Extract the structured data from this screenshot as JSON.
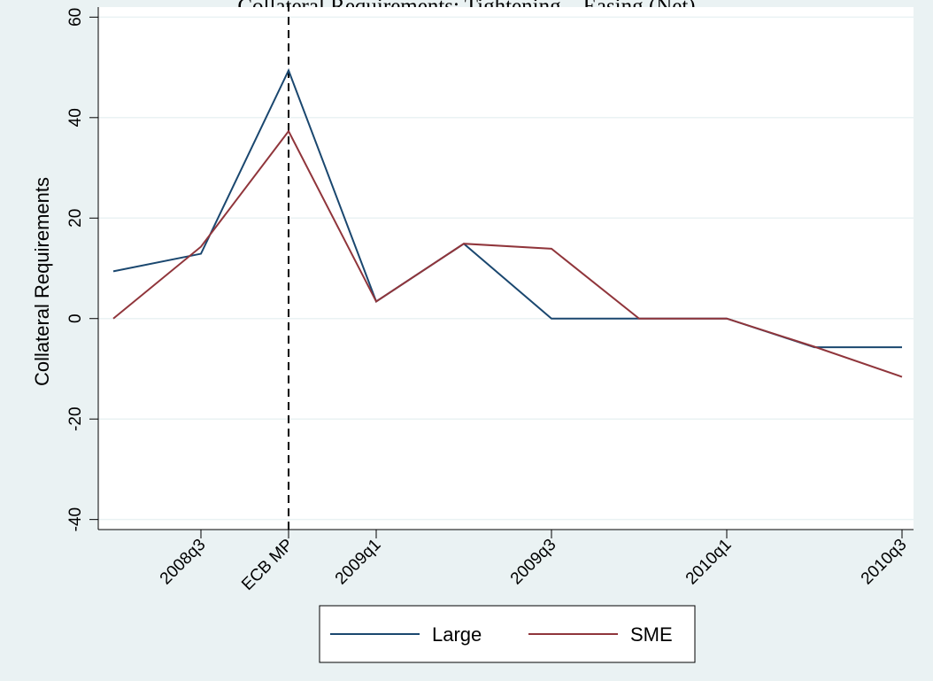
{
  "chart_data": {
    "type": "line",
    "title": "Collateral Requirements: Tightening – Easing (Net)",
    "ylabel": "Collateral Requirements",
    "xlabel": "",
    "x": [
      "2008q2",
      "2008q3",
      "2008q4",
      "2009q1",
      "2009q2",
      "2009q3",
      "2009q4",
      "2010q1",
      "2010q2",
      "2010q3"
    ],
    "x_tick_labels": [
      {
        "x": "2008q3",
        "label": "2008q3"
      },
      {
        "x": "2008q4",
        "label": "ECB MP"
      },
      {
        "x": "2009q1",
        "label": "2009q1"
      },
      {
        "x": "2009q3",
        "label": "2009q3"
      },
      {
        "x": "2010q1",
        "label": "2010q1"
      },
      {
        "x": "2010q3",
        "label": "2010q3"
      }
    ],
    "ylim": [
      -42,
      62
    ],
    "y_ticks": [
      60,
      40,
      20,
      0,
      -20,
      -40
    ],
    "grid": true,
    "vertical_line": {
      "x": "2008q4",
      "style": "dashed",
      "color": "#000000"
    },
    "series": [
      {
        "name": "Large",
        "color": "#1a476f",
        "values": [
          9.4,
          12.9,
          49.4,
          3.4,
          14.9,
          0,
          0,
          0,
          -5.7,
          -5.7
        ]
      },
      {
        "name": "SME",
        "color": "#90353b",
        "values": [
          0,
          14.3,
          37.3,
          3.4,
          14.9,
          13.9,
          0,
          0,
          -5.6,
          -11.6
        ]
      }
    ],
    "legend": {
      "position": "bottom-center",
      "entries": [
        "Large",
        "SME"
      ]
    }
  }
}
